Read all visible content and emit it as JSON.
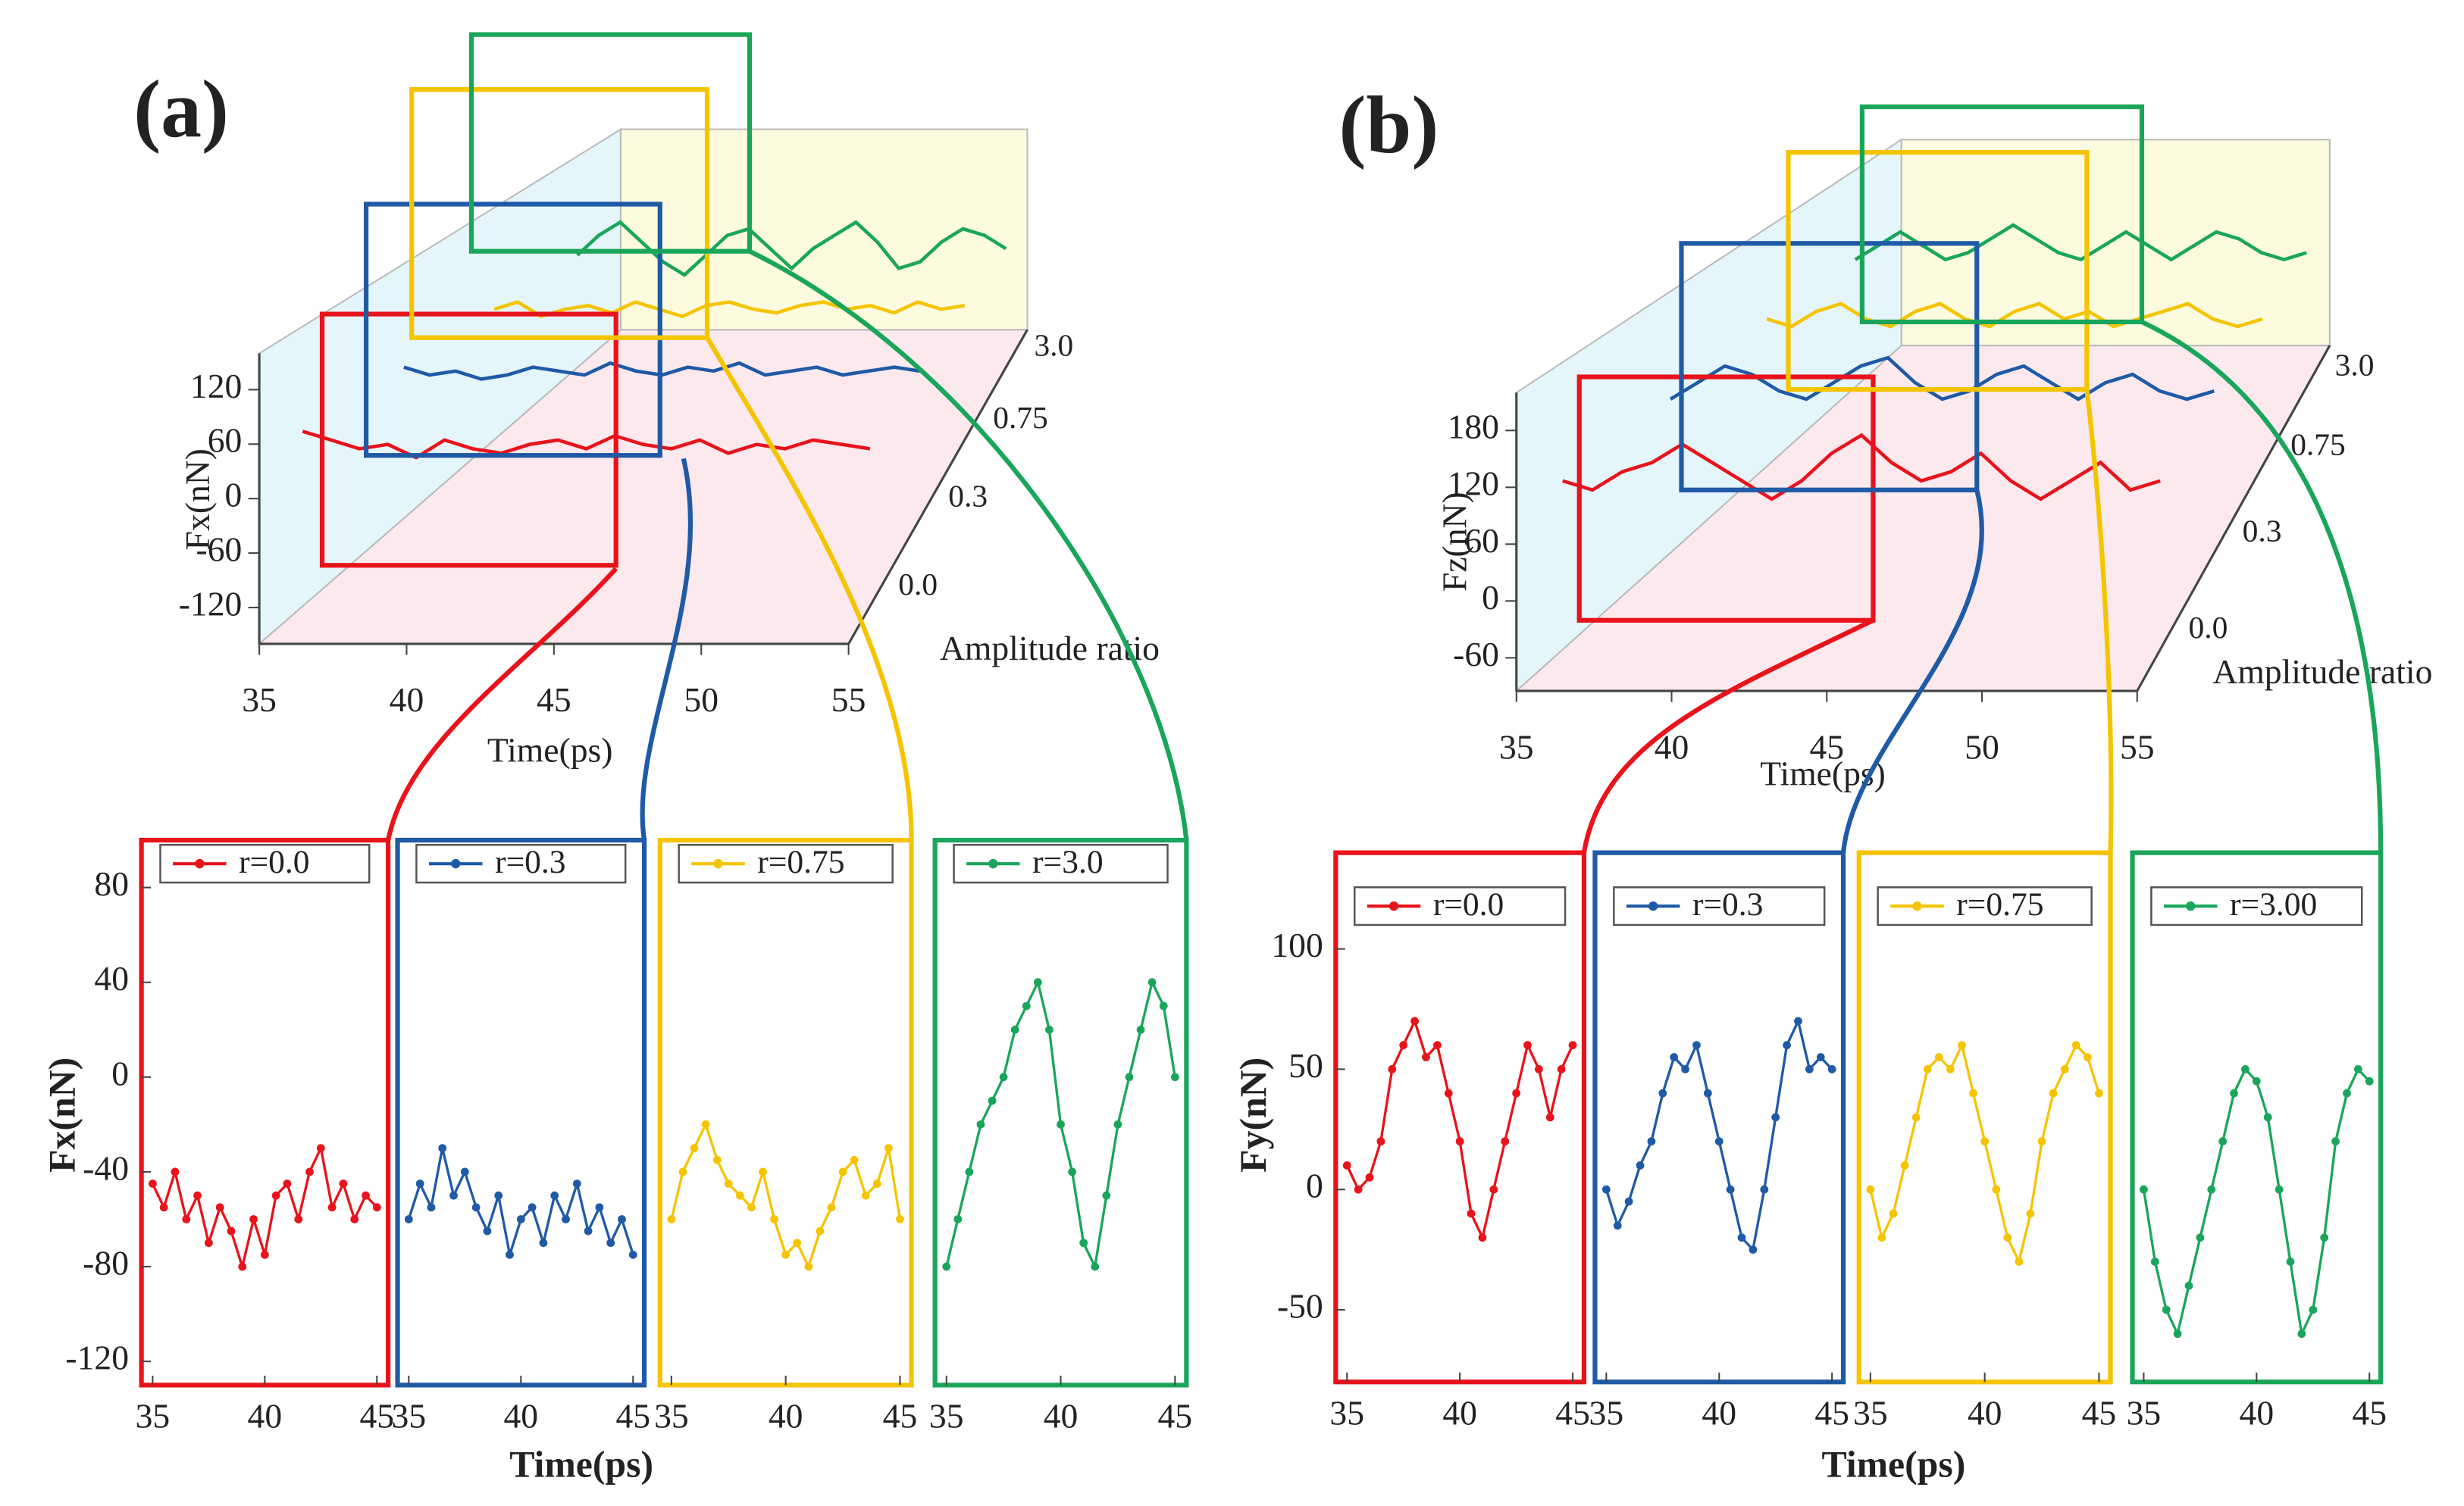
{
  "chart_data": [
    {
      "type": "line3d",
      "title": "(a)",
      "xlabel": "Time(ps)",
      "ylabel": "Fx(nN)",
      "zlabel": "Amplitude ratio",
      "x": [
        35,
        36,
        37,
        38,
        39,
        40,
        41,
        42,
        43,
        44,
        45,
        46,
        47,
        48,
        49,
        50,
        51,
        52,
        53,
        54,
        55
      ],
      "xlim": [
        35,
        55
      ],
      "xticks": [
        35,
        40,
        45,
        50,
        55
      ],
      "ylim": [
        -160,
        160
      ],
      "yticks": [
        -120,
        -60,
        0,
        60,
        120
      ],
      "zcategories": [
        "0.0",
        "0.3",
        "0.75",
        "3.0"
      ],
      "series": [
        {
          "color": "#e8131b",
          "values": [
            40,
            30,
            20,
            25,
            10,
            30,
            20,
            15,
            25,
            30,
            20,
            35,
            25,
            20,
            30,
            15,
            25,
            20,
            30,
            25,
            20
          ]
        },
        {
          "color": "#1f5aa6",
          "values": [
            30,
            20,
            25,
            15,
            20,
            30,
            25,
            20,
            35,
            25,
            20,
            30,
            25,
            35,
            20,
            25,
            30,
            20,
            25,
            30,
            25
          ]
        },
        {
          "color": "#f5c400",
          "values": [
            20,
            30,
            10,
            20,
            25,
            15,
            30,
            20,
            10,
            25,
            30,
            20,
            15,
            25,
            30,
            20,
            25,
            15,
            30,
            20,
            25
          ]
        },
        {
          "color": "#1aa65a",
          "values": [
            10,
            40,
            60,
            30,
            0,
            -20,
            10,
            40,
            50,
            20,
            -10,
            20,
            40,
            60,
            30,
            -10,
            0,
            30,
            50,
            40,
            20
          ]
        }
      ]
    },
    {
      "type": "line",
      "panels": true,
      "markers": true,
      "xlabel": "Time(ps)",
      "ylabel": "Fx(nN)",
      "x": [
        35,
        35.5,
        36,
        36.5,
        37,
        37.5,
        38,
        38.5,
        39,
        39.5,
        40,
        40.5,
        41,
        41.5,
        42,
        42.5,
        43,
        43.5,
        44,
        44.5,
        45
      ],
      "xlim": [
        34.5,
        45.5
      ],
      "xticks": [
        35,
        40,
        45
      ],
      "ylim": [
        -130,
        100
      ],
      "yticks": [
        -120,
        -80,
        -40,
        0,
        40,
        80
      ],
      "series": [
        {
          "name": "r=0.0",
          "color": "#e8131b",
          "values": [
            -45,
            -55,
            -40,
            -60,
            -50,
            -70,
            -55,
            -65,
            -80,
            -60,
            -75,
            -50,
            -45,
            -60,
            -40,
            -30,
            -55,
            -45,
            -60,
            -50,
            -55
          ]
        },
        {
          "name": "r=0.3",
          "color": "#1f5aa6",
          "values": [
            -60,
            -45,
            -55,
            -30,
            -50,
            -40,
            -55,
            -65,
            -50,
            -75,
            -60,
            -55,
            -70,
            -50,
            -60,
            -45,
            -65,
            -55,
            -70,
            -60,
            -75
          ]
        },
        {
          "name": "r=0.75",
          "color": "#f5c400",
          "values": [
            -60,
            -40,
            -30,
            -20,
            -35,
            -45,
            -50,
            -55,
            -40,
            -60,
            -75,
            -70,
            -80,
            -65,
            -55,
            -40,
            -35,
            -50,
            -45,
            -30,
            -60
          ]
        },
        {
          "name": "r=3.0",
          "color": "#1aa65a",
          "values": [
            -80,
            -60,
            -40,
            -20,
            -10,
            0,
            20,
            30,
            40,
            20,
            -20,
            -40,
            -70,
            -80,
            -50,
            -20,
            0,
            20,
            40,
            30,
            0
          ]
        }
      ]
    },
    {
      "type": "line3d",
      "title": "(b)",
      "xlabel": "Time(ps)",
      "ylabel": "Fz(nN)",
      "zlabel": "Amplitude ratio",
      "x": [
        35,
        36,
        37,
        38,
        39,
        40,
        41,
        42,
        43,
        44,
        45,
        46,
        47,
        48,
        49,
        50,
        51,
        52,
        53,
        54,
        55
      ],
      "xlim": [
        35,
        55
      ],
      "xticks": [
        35,
        40,
        45,
        50,
        55
      ],
      "ylim": [
        -95,
        220
      ],
      "yticks": [
        -60,
        0,
        60,
        120,
        180
      ],
      "zcategories": [
        "0.0",
        "0.3",
        "0.75",
        "3.0"
      ],
      "series": [
        {
          "color": "#e8131b",
          "values": [
            90,
            80,
            100,
            110,
            130,
            110,
            90,
            70,
            90,
            120,
            140,
            110,
            90,
            100,
            120,
            90,
            70,
            90,
            110,
            80,
            90
          ]
        },
        {
          "color": "#1f5aa6",
          "values": [
            90,
            110,
            130,
            120,
            100,
            90,
            110,
            130,
            140,
            110,
            90,
            100,
            120,
            130,
            110,
            90,
            110,
            120,
            100,
            90,
            100
          ]
        },
        {
          "color": "#f5c400",
          "values": [
            100,
            90,
            110,
            120,
            100,
            90,
            110,
            120,
            100,
            90,
            110,
            120,
            100,
            110,
            90,
            100,
            110,
            120,
            100,
            90,
            100
          ]
        },
        {
          "color": "#1aa65a",
          "values": [
            90,
            110,
            130,
            110,
            90,
            100,
            120,
            140,
            120,
            100,
            90,
            110,
            130,
            110,
            90,
            110,
            130,
            120,
            100,
            90,
            100
          ]
        }
      ]
    },
    {
      "type": "line",
      "panels": true,
      "markers": true,
      "xlabel": "Time(ps)",
      "ylabel": "Fy(nN)",
      "x": [
        35,
        35.5,
        36,
        36.5,
        37,
        37.5,
        38,
        38.5,
        39,
        39.5,
        40,
        40.5,
        41,
        41.5,
        42,
        42.5,
        43,
        43.5,
        44,
        44.5,
        45
      ],
      "xlim": [
        34.5,
        45.5
      ],
      "xticks": [
        35,
        40,
        45
      ],
      "ylim": [
        -80,
        140
      ],
      "yticks": [
        -50,
        0,
        50,
        100
      ],
      "series": [
        {
          "name": "r=0.0",
          "color": "#e8131b",
          "values": [
            10,
            0,
            5,
            20,
            50,
            60,
            70,
            55,
            60,
            40,
            20,
            -10,
            -20,
            0,
            20,
            40,
            60,
            50,
            30,
            50,
            60
          ]
        },
        {
          "name": "r=0.3",
          "color": "#1f5aa6",
          "values": [
            0,
            -15,
            -5,
            10,
            20,
            40,
            55,
            50,
            60,
            40,
            20,
            0,
            -20,
            -25,
            0,
            30,
            60,
            70,
            50,
            55,
            50
          ]
        },
        {
          "name": "r=0.75",
          "color": "#f5c400",
          "values": [
            0,
            -20,
            -10,
            10,
            30,
            50,
            55,
            50,
            60,
            40,
            20,
            0,
            -20,
            -30,
            -10,
            20,
            40,
            50,
            60,
            55,
            40
          ]
        },
        {
          "name": "r=3.00",
          "color": "#1aa65a",
          "values": [
            0,
            -30,
            -50,
            -60,
            -40,
            -20,
            0,
            20,
            40,
            50,
            45,
            30,
            0,
            -30,
            -60,
            -50,
            -20,
            20,
            40,
            50,
            45
          ]
        }
      ]
    }
  ]
}
